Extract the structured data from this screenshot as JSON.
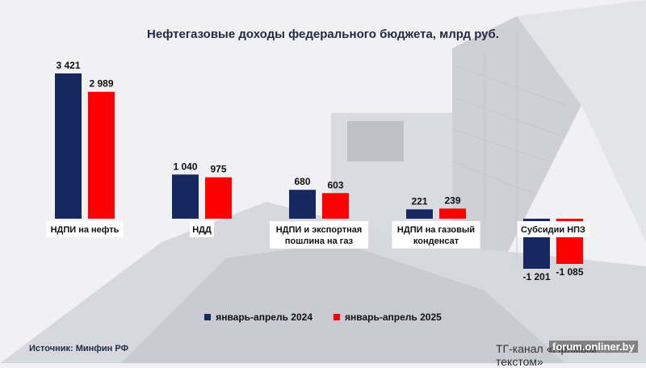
{
  "chart_data": {
    "type": "bar",
    "title": "Нефтегазовые доходы федерального бюджета, млрд руб.",
    "categories": [
      "НДПИ на нефть",
      "НДД",
      "НДПИ и экспортная пошлина на газ",
      "НДПИ на газовый конденсат",
      "Субсидии НПЗ"
    ],
    "series": [
      {
        "name": "январь-апрель 2024",
        "values": [
          3421,
          1040,
          680,
          221,
          -1201
        ],
        "labels": [
          "3 421",
          "1 040",
          "680",
          "221",
          "-1 201"
        ]
      },
      {
        "name": "январь-апрель 2025",
        "values": [
          2989,
          975,
          603,
          239,
          -1085
        ],
        "labels": [
          "2 989",
          "975",
          "603",
          "239",
          "-1 085"
        ]
      }
    ],
    "colors": {
      "series_2024": "#17275f",
      "series_2025": "#ff0000"
    }
  },
  "source": "Источник: Минфин РФ",
  "channel": "ТГ-канал «Прямым текстом»",
  "watermark": "forum.onliner.by"
}
